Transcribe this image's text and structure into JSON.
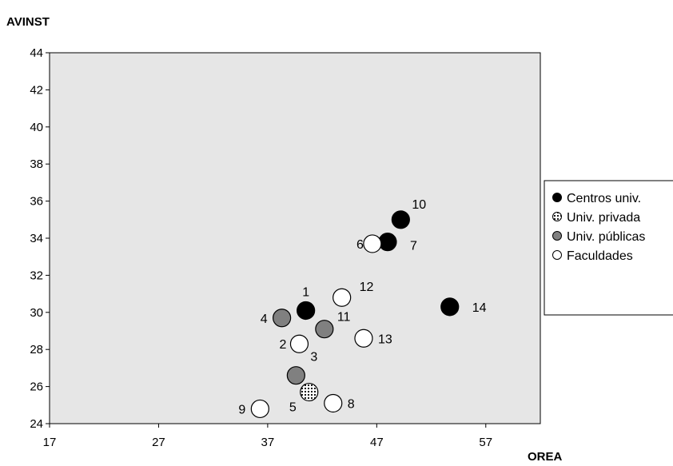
{
  "chart_data": {
    "type": "scatter",
    "xlabel": "OREA",
    "ylabel": "AVINST",
    "xlim": [
      17,
      62
    ],
    "ylim": [
      24,
      44
    ],
    "xticks": [
      17,
      27,
      37,
      47,
      57
    ],
    "yticks": [
      24,
      26,
      28,
      30,
      32,
      34,
      36,
      38,
      40,
      42,
      44
    ],
    "grid": false,
    "legend_position": "right",
    "plot_background": "#e6e6e6",
    "series": [
      {
        "name": "Centros univ.",
        "marker": "filled-black",
        "color": "#000000",
        "points": [
          {
            "label": "1",
            "x": 40.5,
            "y": 30.1
          },
          {
            "label": "7",
            "x": 48.0,
            "y": 33.8
          },
          {
            "label": "10",
            "x": 49.2,
            "y": 35.0
          },
          {
            "label": "14",
            "x": 53.7,
            "y": 30.3
          }
        ]
      },
      {
        "name": "Univ. privada",
        "marker": "dotted",
        "color": "#ffffff",
        "points": [
          {
            "label": "5",
            "x": 40.8,
            "y": 25.7
          }
        ]
      },
      {
        "name": "Univ. públicas",
        "marker": "filled-gray",
        "color": "#808080",
        "points": [
          {
            "label": "3",
            "x": 39.6,
            "y": 26.6
          },
          {
            "label": "4",
            "x": 38.3,
            "y": 29.7
          },
          {
            "label": "11",
            "x": 42.2,
            "y": 29.1
          }
        ]
      },
      {
        "name": "Faculdades",
        "marker": "open",
        "color": "#ffffff",
        "points": [
          {
            "label": "2",
            "x": 39.9,
            "y": 28.3
          },
          {
            "label": "6",
            "x": 46.6,
            "y": 33.7
          },
          {
            "label": "8",
            "x": 43.0,
            "y": 25.1
          },
          {
            "label": "9",
            "x": 36.3,
            "y": 24.8
          },
          {
            "label": "12",
            "x": 43.8,
            "y": 30.8
          },
          {
            "label": "13",
            "x": 45.8,
            "y": 28.6
          }
        ]
      }
    ]
  }
}
